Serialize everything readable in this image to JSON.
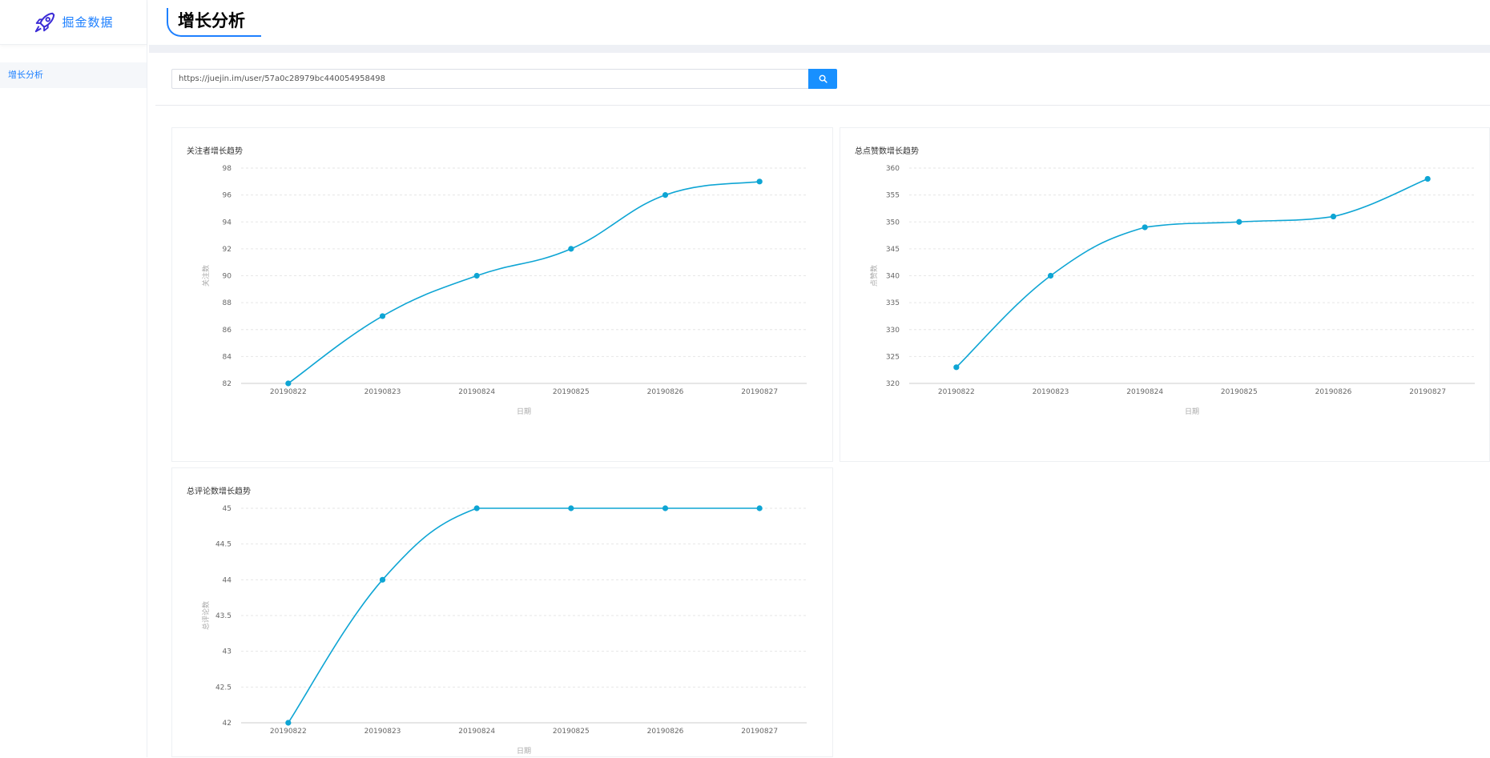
{
  "app": {
    "logo_text": "掘金数据"
  },
  "sidebar": {
    "items": [
      {
        "label": "增长分析"
      }
    ]
  },
  "header": {
    "title": "增长分析"
  },
  "search": {
    "value": "https://juejin.im/user/57a0c28979bc440054958498",
    "placeholder": "",
    "button_icon": "search-icon"
  },
  "colors": {
    "accent": "#1890ff",
    "line": "#0ea5d4",
    "brand": "#1e80ff"
  },
  "chart_data": [
    {
      "type": "line",
      "title": "关注者增长趋势",
      "xlabel": "日期",
      "ylabel": "关注数",
      "categories": [
        "20190822",
        "20190823",
        "20190824",
        "20190825",
        "20190826",
        "20190827"
      ],
      "values": [
        82,
        87,
        90,
        92,
        96,
        97
      ],
      "ylim": [
        82,
        98
      ],
      "yticks": [
        "82",
        "84",
        "86",
        "88",
        "90",
        "92",
        "94",
        "96",
        "98"
      ],
      "grid": true
    },
    {
      "type": "line",
      "title": "总点赞数增长趋势",
      "xlabel": "日期",
      "ylabel": "点赞数",
      "categories": [
        "20190822",
        "20190823",
        "20190824",
        "20190825",
        "20190826",
        "20190827"
      ],
      "values": [
        323,
        340,
        349,
        350,
        351,
        358
      ],
      "ylim": [
        320,
        360
      ],
      "yticks": [
        "320",
        "325",
        "330",
        "335",
        "340",
        "345",
        "350",
        "355",
        "360"
      ],
      "grid": true
    },
    {
      "type": "line",
      "title": "总评论数增长趋势",
      "xlabel": "日期",
      "ylabel": "总评论数",
      "categories": [
        "20190822",
        "20190823",
        "20190824",
        "20190825",
        "20190826",
        "20190827"
      ],
      "values": [
        42,
        44,
        45,
        45,
        45,
        45
      ],
      "ylim": [
        42,
        45
      ],
      "yticks": [
        "42",
        "42.5",
        "43",
        "43.5",
        "44",
        "44.5",
        "45"
      ],
      "grid": true
    }
  ]
}
